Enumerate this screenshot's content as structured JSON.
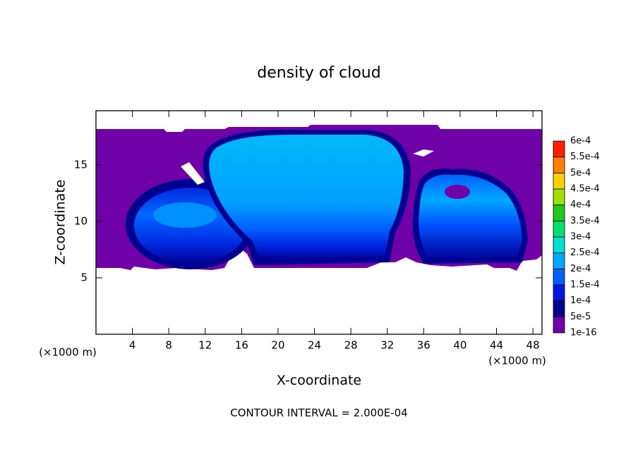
{
  "chart_data": {
    "type": "contour",
    "title": "density of cloud",
    "x_label": "X-coordinate",
    "y_label": "Z-coordinate",
    "x_unit": "(×1000 m)",
    "y_unit": "(×1000 m)",
    "footer": "CONTOUR INTERVAL = 2.000E-04",
    "xlim": [
      0,
      49
    ],
    "ylim": [
      0,
      19.8
    ],
    "xticks": [
      4,
      8,
      12,
      16,
      20,
      24,
      28,
      32,
      36,
      40,
      44,
      48
    ],
    "yticks": [
      5,
      10,
      15
    ],
    "colorbar": {
      "levels": [
        {
          "value": 1e-16,
          "label": "1e-16"
        },
        {
          "value": 5e-05,
          "label": "5e-5"
        },
        {
          "value": 0.0001,
          "label": "1e-4"
        },
        {
          "value": 0.00015,
          "label": "1.5e-4"
        },
        {
          "value": 0.0002,
          "label": "2e-4"
        },
        {
          "value": 0.00025,
          "label": "2.5e-4"
        },
        {
          "value": 0.0003,
          "label": "3e-4"
        },
        {
          "value": 0.00035,
          "label": "3.5e-4"
        },
        {
          "value": 0.0004,
          "label": "4e-4"
        },
        {
          "value": 0.00045,
          "label": "4.5e-4"
        },
        {
          "value": 0.0005,
          "label": "5e-4"
        },
        {
          "value": 0.00055,
          "label": "5.5e-4"
        },
        {
          "value": 0.0006,
          "label": "6e-4"
        }
      ],
      "colors": [
        "#7000a8",
        "#000090",
        "#0018e0",
        "#0060ff",
        "#00a8ff",
        "#00e0d0",
        "#00e070",
        "#20c820",
        "#a0e000",
        "#ffd000",
        "#ff8000",
        "#ff2000"
      ]
    }
  }
}
